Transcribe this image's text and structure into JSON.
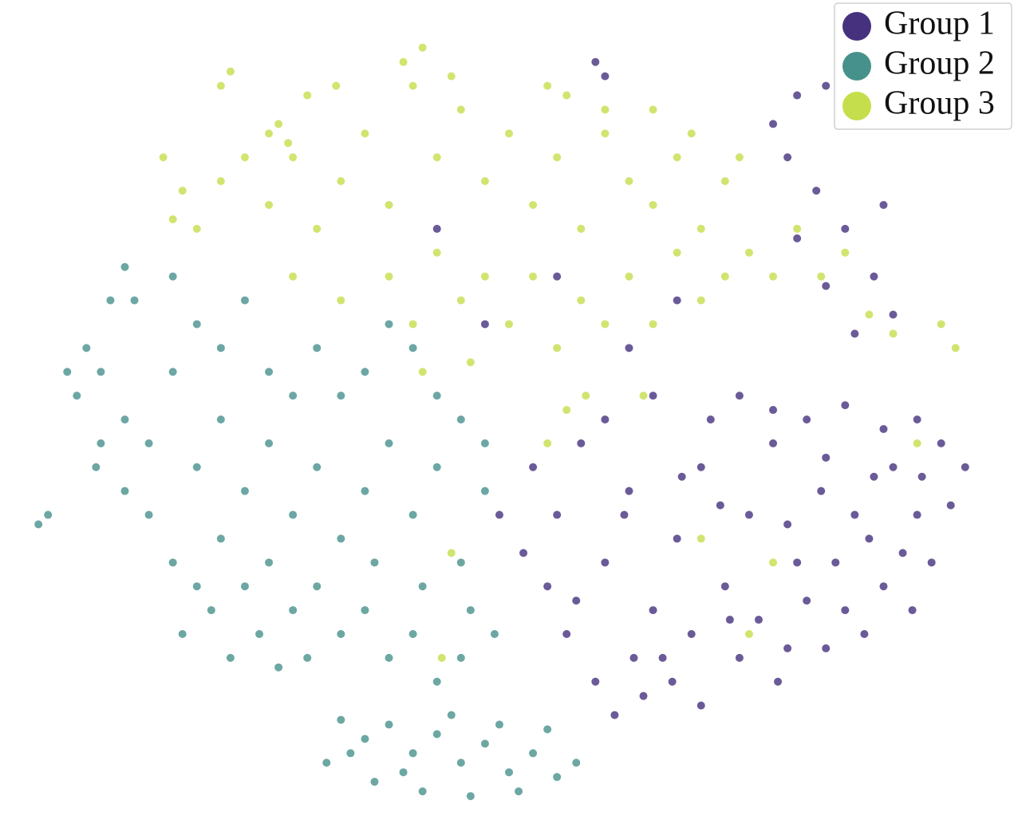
{
  "chart_data": {
    "type": "scatter",
    "legend": "upper right",
    "xlim": [
      -106,
      106
    ],
    "ylim": [
      -88,
      88
    ],
    "series": [
      {
        "name": "Group 1",
        "color": "#46317e",
        "x": [
          5,
          10,
          15,
          20,
          25,
          30,
          35,
          40,
          45,
          50,
          55,
          60,
          65,
          70,
          75,
          80,
          85,
          90,
          12,
          18,
          22,
          28,
          32,
          38,
          8,
          3,
          -2,
          48,
          52,
          58,
          62,
          68,
          72,
          78,
          82,
          88,
          92,
          95,
          42,
          48,
          55,
          62,
          70,
          78,
          85,
          30,
          20,
          14,
          26,
          34,
          40,
          46,
          56,
          66,
          74,
          84,
          24,
          36,
          44,
          58,
          66,
          76,
          86,
          58,
          64,
          70,
          76,
          80,
          72,
          66,
          60,
          55,
          78,
          60,
          66,
          18,
          20,
          10,
          -15,
          25,
          -5,
          35
        ],
        "values": [
          -10,
          -20,
          -5,
          -30,
          -15,
          -40,
          -25,
          -10,
          -35,
          -20,
          -5,
          -30,
          -15,
          -40,
          -25,
          -10,
          -20,
          -5,
          -45,
          -55,
          -62,
          -58,
          -50,
          -45,
          -35,
          -28,
          -20,
          -50,
          -42,
          -48,
          -38,
          -30,
          -20,
          -35,
          -28,
          -30,
          -18,
          -10,
          0,
          5,
          2,
          0,
          3,
          -2,
          0,
          5,
          0,
          -38,
          -50,
          -55,
          -60,
          -42,
          -55,
          -48,
          -45,
          -40,
          -20,
          -12,
          -18,
          -22,
          -8,
          -12,
          -12,
          55,
          48,
          40,
          30,
          22,
          18,
          28,
          38,
          62,
          45,
          68,
          70,
          75,
          72,
          30,
          40,
          15,
          20,
          25
        ]
      },
      {
        "name": "Group 2",
        "color": "#47918c",
        "x": [
          -90,
          -85,
          -80,
          -75,
          -70,
          -65,
          -60,
          -55,
          -50,
          -45,
          -40,
          -35,
          -30,
          -25,
          -20,
          -15,
          -10,
          -5,
          -60,
          -55,
          -50,
          -45,
          -40,
          -35,
          -30,
          -25,
          -20,
          -15,
          -10,
          -70,
          -65,
          -75,
          -80,
          -85,
          -88,
          -78,
          -70,
          -65,
          -60,
          -55,
          -50,
          -45,
          -40,
          -35,
          -30,
          -25,
          -20,
          -15,
          -10,
          -5,
          -68,
          -62,
          -58,
          -52,
          -48,
          -42,
          -28,
          -18,
          -8,
          -3,
          -96,
          -98,
          -83,
          -80,
          -92,
          -86,
          -35,
          -30,
          -25,
          -20,
          -15,
          -10,
          -5,
          0,
          5,
          10,
          -38,
          -28,
          -18,
          -8,
          2,
          14,
          -33,
          -22,
          -12,
          -2,
          8
        ],
        "values": [
          5,
          10,
          0,
          -5,
          10,
          -10,
          0,
          -15,
          -5,
          -20,
          -10,
          -25,
          -15,
          -5,
          -20,
          -10,
          -30,
          -15,
          -25,
          -35,
          -30,
          -40,
          -35,
          -45,
          -40,
          -50,
          -45,
          -55,
          -50,
          -30,
          -35,
          -20,
          -15,
          -5,
          15,
          25,
          30,
          20,
          15,
          25,
          10,
          5,
          15,
          5,
          10,
          20,
          15,
          5,
          0,
          -5,
          -45,
          -40,
          -50,
          -45,
          -52,
          -50,
          -30,
          -35,
          -40,
          -45,
          -20,
          -22,
          25,
          32,
          10,
          -10,
          -63,
          -67,
          -64,
          -70,
          -66,
          -72,
          -68,
          -74,
          -70,
          -75,
          -72,
          -76,
          -78,
          -79,
          -78,
          -72,
          -70,
          -74,
          -62,
          -64,
          -65
        ]
      },
      {
        "name": "Group 3",
        "color": "#c4df4b",
        "x": [
          -60,
          -55,
          -50,
          -45,
          -40,
          -35,
          -30,
          -25,
          -20,
          -15,
          -10,
          -5,
          0,
          5,
          10,
          15,
          20,
          25,
          30,
          35,
          40,
          45,
          50,
          55,
          -25,
          -20,
          -15,
          -10,
          -5,
          0,
          5,
          10,
          15,
          20,
          25,
          30,
          35,
          40,
          45,
          -50,
          -48,
          -46,
          -60,
          -58,
          -42,
          -36,
          -22,
          -18,
          -12,
          8,
          12,
          20,
          30,
          38,
          48,
          60,
          65,
          70,
          75,
          80,
          90,
          93,
          -65,
          -70,
          -45,
          -35,
          12,
          8,
          16,
          -18,
          -8,
          28,
          -12,
          -14,
          40,
          50,
          55,
          85,
          -72,
          -68
        ],
        "values": [
          50,
          55,
          45,
          55,
          40,
          50,
          60,
          45,
          70,
          55,
          65,
          50,
          60,
          45,
          55,
          40,
          60,
          50,
          45,
          55,
          40,
          50,
          35,
          30,
          30,
          20,
          35,
          25,
          30,
          20,
          30,
          15,
          25,
          20,
          30,
          20,
          35,
          25,
          30,
          60,
          62,
          58,
          70,
          73,
          68,
          70,
          75,
          78,
          72,
          70,
          68,
          65,
          65,
          60,
          55,
          40,
          30,
          35,
          22,
          18,
          20,
          15,
          40,
          42,
          30,
          25,
          2,
          -5,
          5,
          10,
          12,
          5,
          -28,
          -50,
          -25,
          -45,
          -30,
          -5,
          55,
          48
        ]
      }
    ]
  }
}
